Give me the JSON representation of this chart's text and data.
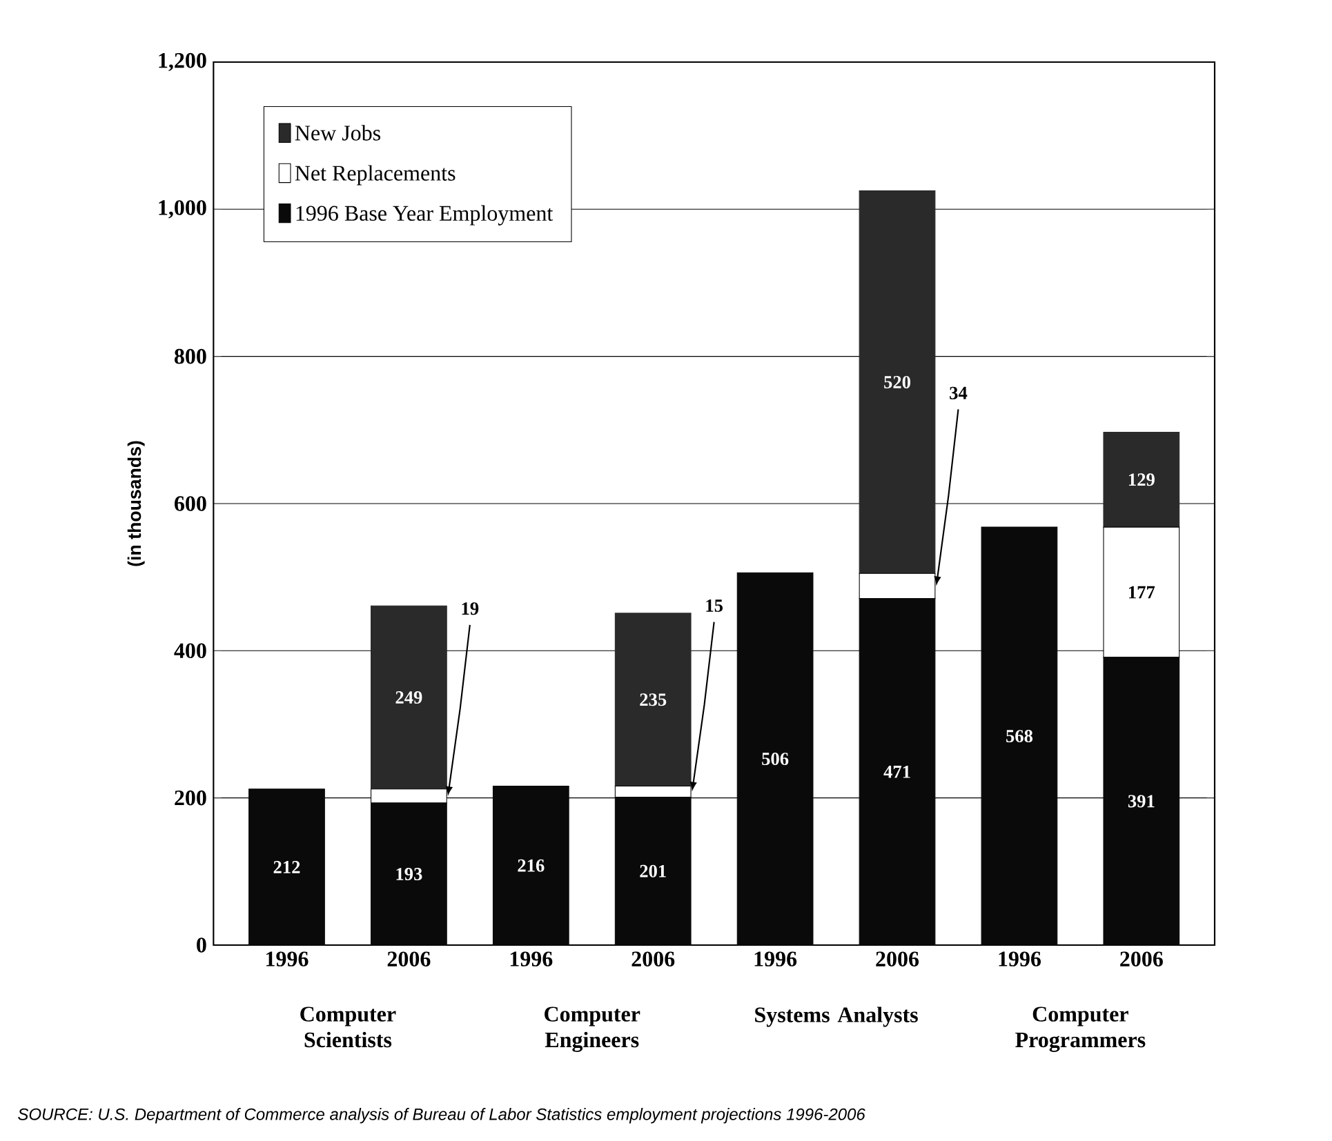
{
  "chart_data": {
    "type": "bar",
    "stacked": true,
    "ylabel": "(in thousands)",
    "categories": [
      "1996",
      "2006",
      "1996",
      "2006",
      "1996",
      "2006",
      "1996",
      "2006"
    ],
    "series": [
      {
        "name": "1996 Base Year Employment",
        "color": "#0a0a0a",
        "values": [
          212,
          193,
          216,
          201,
          506,
          471,
          568,
          391
        ],
        "value_labels": [
          "212",
          "193",
          "216",
          "201",
          "506",
          "471",
          "568",
          "391"
        ]
      },
      {
        "name": "Net Replacements",
        "color": "#ffffff",
        "values": [
          0,
          19,
          0,
          15,
          0,
          34,
          0,
          177
        ],
        "value_labels": [
          null,
          "19",
          null,
          "15",
          null,
          "34",
          null,
          "177"
        ]
      },
      {
        "name": "New Jobs",
        "color": "#2a2a2a",
        "values": [
          0,
          249,
          0,
          235,
          0,
          520,
          0,
          129
        ],
        "value_labels": [
          null,
          "249",
          null,
          "235",
          null,
          "520",
          null,
          "129"
        ]
      }
    ],
    "ylim": [
      0,
      1200
    ],
    "yticks": [
      0,
      200,
      400,
      600,
      800,
      {
        "value": 1000,
        "label": "1,000"
      },
      {
        "value": 1200,
        "label": "1,200"
      }
    ],
    "grid": "y",
    "legend": "top left",
    "annotations": [
      "Computer Scientists",
      "Computer Engineers",
      "Systems Analysts",
      "Computer Programmers",
      "SOURCE:  U.S. Department of Commerce analysis of Bureau of Labor Statistics employment projections 1996-2006"
    ]
  }
}
